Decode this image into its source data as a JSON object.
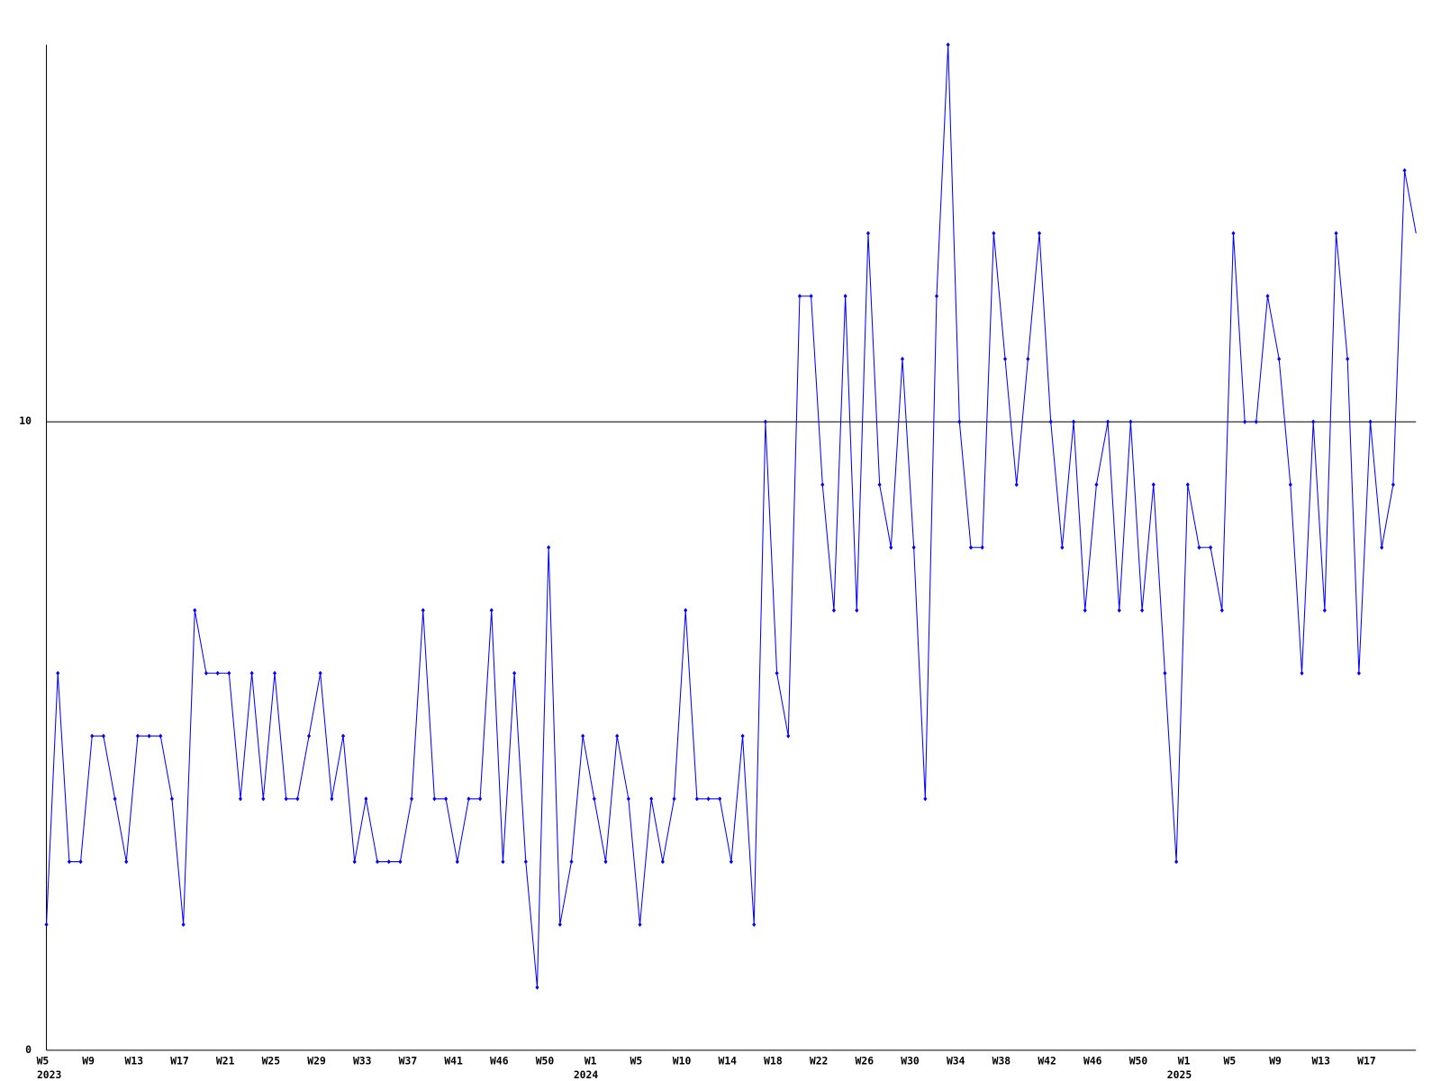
{
  "chart_data": {
    "type": "line",
    "categories": [
      "W5",
      null,
      null,
      null,
      "W9",
      null,
      null,
      null,
      "W13",
      null,
      null,
      null,
      "W17",
      null,
      null,
      null,
      "W21",
      null,
      null,
      null,
      "W25",
      null,
      null,
      null,
      "W29",
      null,
      null,
      null,
      "W33",
      null,
      null,
      null,
      "W37",
      null,
      null,
      null,
      "W41",
      null,
      null,
      null,
      "W46",
      null,
      null,
      null,
      "W50",
      null,
      null,
      null,
      "W1",
      null,
      null,
      null,
      "W5",
      null,
      null,
      null,
      "W10",
      null,
      null,
      null,
      "W14",
      null,
      null,
      null,
      "W18",
      null,
      null,
      null,
      "W22",
      null,
      null,
      null,
      "W26",
      null,
      null,
      null,
      "W30",
      null,
      null,
      null,
      "W34",
      null,
      null,
      null,
      "W38",
      null,
      null,
      null,
      "W42",
      null,
      null,
      null,
      "W46",
      null,
      null,
      null,
      "W50",
      null,
      null,
      null,
      "W1",
      null,
      null,
      null,
      "W5",
      null,
      null,
      null,
      "W9",
      null,
      null,
      null,
      "W13",
      null,
      null,
      null,
      "W17",
      null,
      null,
      null,
      null
    ],
    "year_labels": [
      "2023",
      null,
      null,
      null,
      null,
      null,
      null,
      null,
      null,
      null,
      null,
      null,
      null,
      null,
      null,
      null,
      null,
      null,
      null,
      null,
      null,
      null,
      null,
      null,
      null,
      null,
      null,
      null,
      null,
      null,
      null,
      null,
      null,
      null,
      null,
      null,
      null,
      null,
      null,
      null,
      null,
      null,
      null,
      null,
      null,
      null,
      null,
      null,
      "2024",
      null,
      null,
      null,
      null,
      null,
      null,
      null,
      null,
      null,
      null,
      null,
      null,
      null,
      null,
      null,
      null,
      null,
      null,
      null,
      null,
      null,
      null,
      null,
      null,
      null,
      null,
      null,
      null,
      null,
      null,
      null,
      null,
      null,
      null,
      null,
      null,
      null,
      null,
      null,
      null,
      null,
      null,
      null,
      null,
      null,
      null,
      null,
      null,
      null,
      null,
      null,
      "2025",
      null,
      null,
      null,
      null,
      null,
      null,
      null,
      null,
      null,
      null,
      null,
      null,
      null,
      null,
      null,
      null,
      null,
      null,
      null,
      null
    ],
    "series": [
      {
        "color": "#0000ff",
        "values": [
          2,
          6,
          3,
          3,
          5,
          5,
          4,
          3,
          5,
          5,
          5,
          4,
          2,
          7,
          6,
          6,
          6,
          4,
          6,
          4,
          6,
          4,
          4,
          5,
          6,
          4,
          5,
          3,
          4,
          3,
          3,
          3,
          4,
          7,
          4,
          4,
          3,
          4,
          4,
          7,
          3,
          6,
          3,
          1,
          8,
          2,
          3,
          5,
          4,
          3,
          5,
          4,
          2,
          4,
          3,
          4,
          7,
          4,
          4,
          4,
          3,
          5,
          2,
          10,
          6,
          5,
          12,
          12,
          9,
          7,
          12,
          7,
          13,
          9,
          8,
          11,
          8,
          4,
          12,
          16,
          10,
          8,
          8,
          13,
          11,
          9,
          11,
          13,
          10,
          8,
          10,
          7,
          9,
          10,
          7,
          10,
          7,
          9,
          6,
          3,
          9,
          8,
          8,
          7,
          13,
          10,
          10,
          12,
          11,
          9,
          6,
          10,
          7,
          13,
          11,
          6,
          10,
          8,
          9,
          14,
          13
        ]
      }
    ],
    "ylim": [
      0,
      16
    ],
    "yticks": [
      0,
      10
    ],
    "grid": true
  }
}
